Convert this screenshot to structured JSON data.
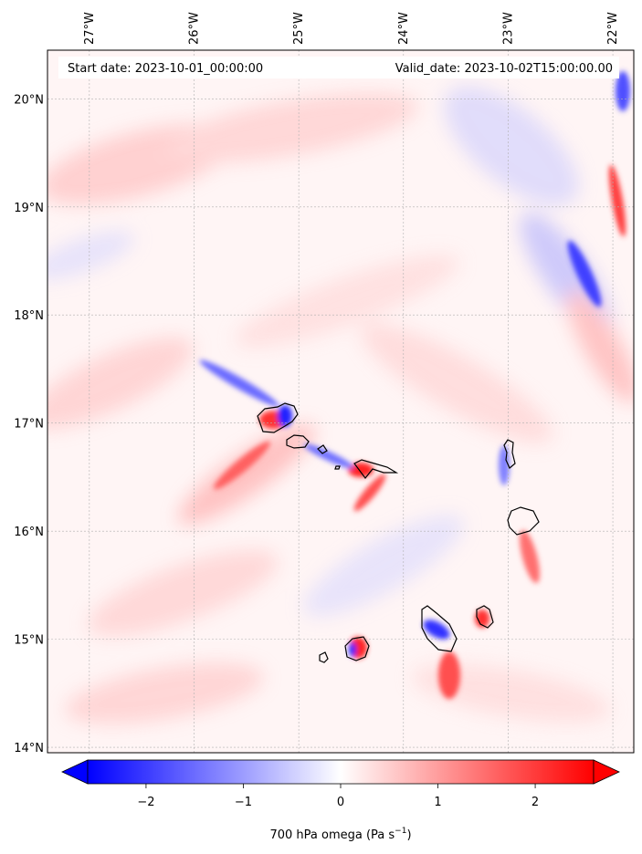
{
  "map": {
    "start_date_text": "Start date: 2023-10-01_00:00:00",
    "valid_date_text": "Valid_date: 2023-10-02T15:00:00.00",
    "lon_ticks": [
      {
        "value": -27,
        "label": "27°W"
      },
      {
        "value": -26,
        "label": "26°W"
      },
      {
        "value": -25,
        "label": "25°W"
      },
      {
        "value": -24,
        "label": "24°W"
      },
      {
        "value": -23,
        "label": "23°W"
      },
      {
        "value": -22,
        "label": "22°W"
      }
    ],
    "lat_ticks": [
      {
        "value": 14,
        "label": "14°N"
      },
      {
        "value": 15,
        "label": "15°N"
      },
      {
        "value": 16,
        "label": "16°N"
      },
      {
        "value": 17,
        "label": "17°N"
      },
      {
        "value": 18,
        "label": "18°N"
      },
      {
        "value": 19,
        "label": "19°N"
      },
      {
        "value": 20,
        "label": "20°N"
      }
    ],
    "extent": {
      "lon_min": -27.4,
      "lon_max": -21.8,
      "lat_min": 13.95,
      "lat_max": 20.45
    },
    "field": "700 hPa omega",
    "gridlines": true,
    "colors": {
      "negative": "#0000ff",
      "neutral": "#ffffff",
      "positive": "#ff0000",
      "coast": "#000000"
    }
  },
  "colorbar": {
    "label_main": "700 hPa omega (Pa s",
    "label_exp": "−1",
    "label_close": ")",
    "vmin": -2.6,
    "vmax": 2.6,
    "extend": "both",
    "ticks": [
      {
        "value": -2,
        "label": "−2"
      },
      {
        "value": -1,
        "label": "−1"
      },
      {
        "value": 0,
        "label": "0"
      },
      {
        "value": 1,
        "label": "1"
      },
      {
        "value": 2,
        "label": "2"
      }
    ]
  }
}
